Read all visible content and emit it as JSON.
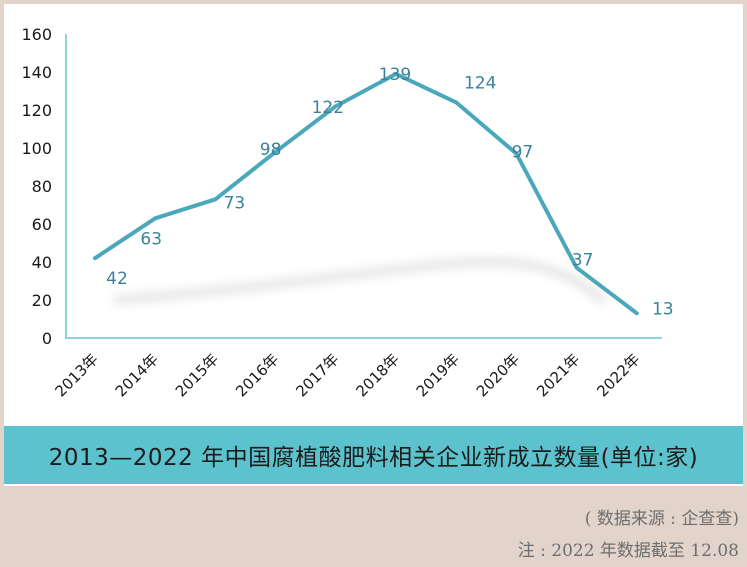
{
  "chart_data": {
    "type": "line",
    "categories": [
      "2013年",
      "2014年",
      "2015年",
      "2016年",
      "2017年",
      "2018年",
      "2019年",
      "2020年",
      "2021年",
      "2022年"
    ],
    "values": [
      42,
      63,
      73,
      98,
      122,
      139,
      124,
      97,
      37,
      13
    ],
    "ylim": [
      0,
      160
    ],
    "yticks": [
      0,
      20,
      40,
      60,
      80,
      100,
      120,
      140,
      160
    ],
    "grid": false,
    "line_color": "#4ba8bb",
    "label_color": "#3a8299"
  },
  "caption": "2013—2022 年中国腐植酸肥料相关企业新成立数量(单位:家)",
  "source_note": "( 数据来源 : 企查查)",
  "footnote": "注 : 2022 年数据截至 12.08",
  "colors": {
    "caption_bg": "#5cc2cd",
    "page_bg": "#e2d4cb",
    "axis": "#8fd3dc"
  }
}
